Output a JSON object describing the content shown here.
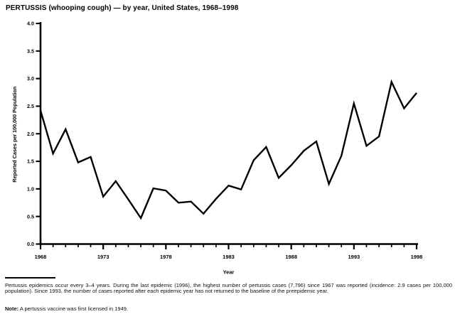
{
  "title": "PERTUSSIS (whooping cough) — by year, United States, 1968–1998",
  "chart_data": {
    "type": "line",
    "title": "PERTUSSIS (whooping cough) — by year, United States, 1968–1998",
    "xlabel": "Year",
    "ylabel": "Reported Cases per 100,000 Population",
    "x": [
      1968,
      1969,
      1970,
      1971,
      1972,
      1973,
      1974,
      1975,
      1976,
      1977,
      1978,
      1979,
      1980,
      1981,
      1982,
      1983,
      1984,
      1985,
      1986,
      1987,
      1988,
      1989,
      1990,
      1991,
      1992,
      1993,
      1994,
      1995,
      1996,
      1997,
      1998
    ],
    "values": [
      2.42,
      1.64,
      2.08,
      1.48,
      1.58,
      0.86,
      1.14,
      0.81,
      0.47,
      1.01,
      0.97,
      0.75,
      0.77,
      0.55,
      0.82,
      1.06,
      0.99,
      1.52,
      1.76,
      1.2,
      1.43,
      1.69,
      1.86,
      1.09,
      1.6,
      2.55,
      1.78,
      1.95,
      2.94,
      2.46,
      2.74
    ],
    "ylim": [
      0.0,
      4.0
    ],
    "yticks": [
      0.0,
      0.5,
      1.0,
      1.5,
      2.0,
      2.5,
      3.0,
      3.5,
      4.0
    ],
    "ytick_labels": [
      "0.0",
      "0.5",
      "1.0",
      "1.5",
      "2.0",
      "2.5",
      "3.0",
      "3.5",
      "4.0"
    ],
    "xticks_major": [
      1968,
      1973,
      1978,
      1983,
      1988,
      1993,
      1998
    ],
    "grid": false,
    "legend": false,
    "line_color": "#000000",
    "background_color": "#ffffff"
  },
  "footnote": {
    "text": "Pertussis epidemics occur every 3–4 years. During the last epidemic (1996), the highest number of pertussis cases (7,796) since 1967 was reported (incidence: 2.9 cases per 100,000 population). Since 1993, the number of cases reported after each epidemic year has not returned to the baseline of the preepidemic year.",
    "note_label": "Note:",
    "note_text": " A pertussis vaccine was first licensed in 1949."
  }
}
